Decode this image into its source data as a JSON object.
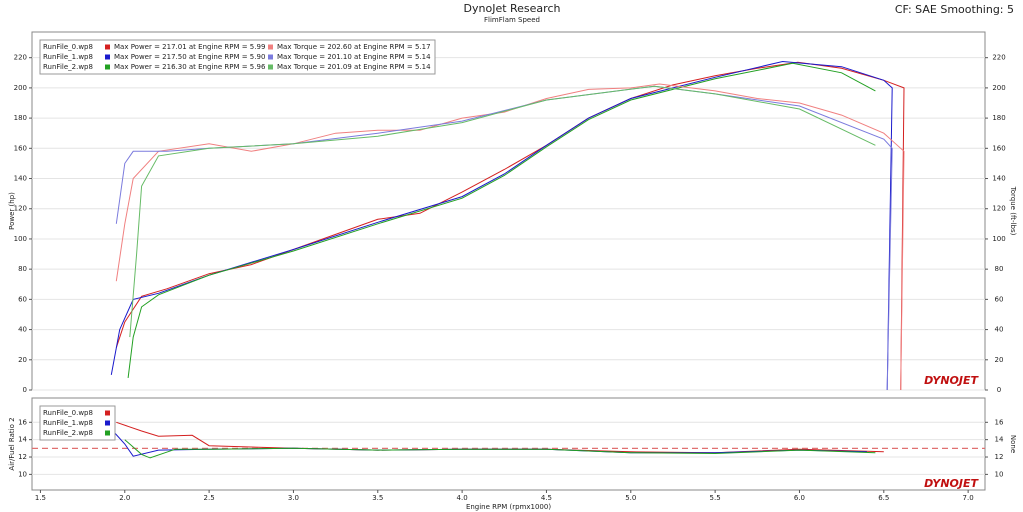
{
  "header": {
    "title": "DynoJet Research",
    "subtitle": "FlimFlam Speed",
    "settings": "CF: SAE Smoothing: 5",
    "logo": "DYNOJET"
  },
  "chart_data": [
    {
      "type": "line",
      "xlabel": "Engine RPM (rpmx1000)",
      "ylabel": "Power (hp)",
      "y2label": "Torque (ft-lbs)",
      "xlim": [
        1.45,
        7.1
      ],
      "ylim": [
        0,
        237
      ],
      "yticks": [
        0,
        20,
        40,
        60,
        80,
        100,
        120,
        140,
        160,
        180,
        200,
        220
      ],
      "y2lim": [
        0,
        237
      ],
      "y2ticks": [
        0,
        20,
        40,
        60,
        80,
        100,
        120,
        140,
        160,
        180,
        200,
        220
      ],
      "grid": true,
      "legend": "upper left",
      "legend_notes": [
        [
          "Max Power = 217.01 at Engine RPM = 5.99",
          "Max Torque = 202.60 at Engine RPM = 5.17"
        ],
        [
          "Max Power = 217.50 at Engine RPM = 5.90",
          "Max Torque = 201.10 at Engine RPM = 5.14"
        ],
        [
          "Max Power = 216.30 at Engine RPM = 5.96",
          "Max Torque = 201.09 at Engine RPM = 5.14"
        ]
      ],
      "series": [
        {
          "name": "RunFile_0.wp8",
          "color": "#d42020",
          "x": [
            1.95,
            2.0,
            2.1,
            2.25,
            2.5,
            2.75,
            3.0,
            3.25,
            3.5,
            3.75,
            4.0,
            4.25,
            4.5,
            4.75,
            5.0,
            5.25,
            5.5,
            5.75,
            5.99,
            6.25,
            6.5,
            6.62,
            6.6
          ],
          "values": [
            28,
            45,
            62,
            67,
            77,
            83,
            93,
            103,
            113,
            117,
            131,
            146,
            162,
            180,
            193,
            202,
            208,
            213,
            217.01,
            213,
            205,
            200,
            0
          ]
        },
        {
          "name": "RunFile_1.wp8",
          "color": "#1a1acc",
          "x": [
            1.92,
            1.97,
            2.05,
            2.2,
            2.5,
            3.0,
            3.5,
            4.0,
            4.25,
            4.5,
            4.75,
            5.0,
            5.5,
            5.9,
            6.25,
            6.5,
            6.55,
            6.52
          ],
          "values": [
            10,
            40,
            60,
            64,
            76,
            93,
            111,
            128,
            143,
            162,
            180,
            193,
            207,
            217.5,
            214,
            205,
            200,
            0
          ]
        },
        {
          "name": "RunFile_2.wp8",
          "color": "#22a022",
          "x": [
            2.02,
            2.05,
            2.1,
            2.2,
            2.5,
            3.0,
            3.5,
            4.0,
            4.25,
            4.5,
            4.75,
            5.0,
            5.5,
            5.96,
            6.25,
            6.45
          ],
          "values": [
            8,
            35,
            55,
            63,
            76,
            92,
            110,
            127,
            142,
            161,
            179,
            192,
            206,
            216.3,
            210,
            198
          ]
        },
        {
          "color": "#f08080",
          "axis": "y2",
          "x": [
            1.95,
            2.0,
            2.05,
            2.2,
            2.5,
            2.75,
            3.0,
            3.25,
            3.5,
            3.75,
            4.0,
            4.25,
            4.5,
            4.75,
            5.0,
            5.17,
            5.5,
            5.75,
            6.0,
            6.25,
            6.5,
            6.62,
            6.6
          ],
          "values": [
            72,
            110,
            140,
            158,
            163,
            158,
            163,
            170,
            172,
            172,
            180,
            184,
            193,
            199,
            200,
            202.6,
            198,
            193,
            190,
            182,
            170,
            158,
            0
          ]
        },
        {
          "color": "#7b7bdd",
          "axis": "y2",
          "x": [
            1.95,
            2.0,
            2.05,
            2.25,
            2.5,
            3.0,
            3.5,
            4.0,
            4.5,
            5.14,
            5.5,
            6.0,
            6.5,
            6.55,
            6.52
          ],
          "values": [
            110,
            150,
            158,
            158,
            160,
            163,
            170,
            178,
            192,
            201.1,
            196,
            188,
            166,
            160,
            0
          ]
        },
        {
          "color": "#66bb66",
          "axis": "y2",
          "x": [
            2.03,
            2.07,
            2.1,
            2.2,
            2.5,
            3.0,
            3.5,
            4.0,
            4.5,
            5.14,
            5.5,
            6.0,
            6.45
          ],
          "values": [
            35,
            90,
            135,
            155,
            160,
            163,
            168,
            177,
            192,
            201.09,
            196,
            186,
            162
          ]
        }
      ]
    },
    {
      "type": "line",
      "xlabel": "Engine RPM (rpmx1000)",
      "ylabel": "Air/Fuel Ratio 2",
      "y2label": "None",
      "xlim": [
        1.45,
        7.1
      ],
      "ylim": [
        8.2,
        18.8
      ],
      "yticks": [
        10,
        12,
        14,
        16
      ],
      "y2lim": [
        8.2,
        18.8
      ],
      "y2ticks": [
        10,
        12,
        14,
        16
      ],
      "xticks": [
        1.5,
        {
          "value": 2,
          "label": "2.0"
        },
        2.5,
        {
          "value": 3,
          "label": "3.0"
        },
        3.5,
        {
          "value": 4,
          "label": "4.0"
        },
        4.5,
        {
          "value": 5,
          "label": "5.0"
        },
        5.5,
        {
          "value": 6,
          "label": "6.0"
        },
        6.5,
        {
          "value": 7,
          "label": "7.0"
        }
      ],
      "reference_line": 13,
      "reference_color": "#e07070",
      "grid": true,
      "legend": "upper left",
      "series": [
        {
          "name": "RunFile_0.wp8",
          "color": "#d42020",
          "x": [
            1.95,
            2.1,
            2.2,
            2.4,
            2.5,
            3.0,
            3.5,
            4.0,
            4.5,
            5.0,
            5.5,
            6.0,
            6.5
          ],
          "values": [
            16,
            15,
            14.4,
            14.5,
            13.3,
            13.0,
            12.8,
            12.9,
            12.9,
            12.6,
            12.5,
            12.9,
            12.6
          ]
        },
        {
          "name": "RunFile_1.wp8",
          "color": "#1a1acc",
          "x": [
            1.93,
            2.0,
            2.05,
            2.2,
            2.5,
            3.0,
            3.5,
            4.0,
            4.5,
            5.0,
            5.5,
            6.0,
            6.4
          ],
          "values": [
            15,
            13.5,
            12.1,
            12.8,
            12.9,
            13.0,
            12.8,
            12.9,
            12.9,
            12.5,
            12.5,
            12.8,
            12.6
          ]
        },
        {
          "name": "RunFile_2.wp8",
          "color": "#22a022",
          "x": [
            2.0,
            2.1,
            2.15,
            2.3,
            2.5,
            3.0,
            3.5,
            4.0,
            4.5,
            5.0,
            5.5,
            6.0,
            6.45
          ],
          "values": [
            14,
            12.3,
            11.9,
            12.9,
            12.9,
            13.0,
            12.8,
            12.9,
            12.9,
            12.5,
            12.4,
            12.8,
            12.5
          ]
        }
      ]
    }
  ]
}
